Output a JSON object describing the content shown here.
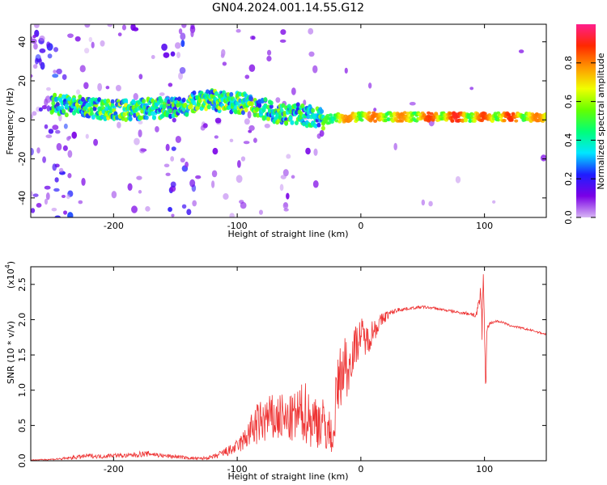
{
  "figure": {
    "title": "GN04.2024.001.14.55.G12"
  },
  "chart_data": [
    {
      "type": "heatmap",
      "xlabel": "Height of straight line (km)",
      "ylabel": "Frequency (Hz)",
      "xlim": [
        -267,
        150
      ],
      "ylim": [
        -50,
        49
      ],
      "xticks": [
        -200,
        -100,
        0,
        100
      ],
      "yticks": [
        -40,
        -20,
        0,
        20,
        40
      ],
      "grid": false,
      "colorbar": {
        "label": "Normalized spectral amplitude",
        "range": [
          0.0,
          1.0
        ],
        "ticks": [
          0.0,
          0.2,
          0.4,
          0.6,
          0.8
        ],
        "colors": [
          "#d8b6f4",
          "#7a00e6",
          "#1e1eff",
          "#00e6ff",
          "#00ff78",
          "#64ff00",
          "#f0ff00",
          "#ff9600",
          "#ff2800",
          "#ff1e8c"
        ]
      },
      "ridge": {
        "x": [
          -245,
          -230,
          -215,
          -200,
          -185,
          -170,
          -155,
          -140,
          -130,
          -120,
          -110,
          -100,
          -90,
          -80,
          -70,
          -60,
          -50,
          -45,
          -40,
          -35,
          -30,
          -20,
          -10,
          0,
          20,
          40,
          60,
          80,
          90,
          100,
          110,
          120,
          135,
          150
        ],
        "freq": [
          8,
          7,
          6,
          5,
          5,
          6,
          6,
          7,
          11,
          10,
          9,
          9,
          8,
          6,
          4,
          3,
          3,
          2,
          2,
          1,
          0,
          1,
          1,
          1.5,
          1.5,
          1.5,
          1.5,
          1.5,
          1.5,
          1.5,
          1.5,
          1.5,
          1.5,
          1.5
        ],
        "amplitude": [
          0.45,
          0.5,
          0.5,
          0.55,
          0.5,
          0.45,
          0.45,
          0.5,
          0.55,
          0.5,
          0.55,
          0.5,
          0.5,
          0.45,
          0.5,
          0.45,
          0.45,
          0.4,
          0.4,
          0.45,
          0.55,
          0.75,
          0.8,
          0.85,
          0.8,
          0.8,
          0.9,
          0.92,
          0.8,
          0.88,
          0.85,
          0.9,
          0.82,
          0.8
        ]
      }
    },
    {
      "type": "line",
      "xlabel": "Height of straight line (km)",
      "ylabel": "SNR (10 * v/v)",
      "y_scale_label": "(x10",
      "y_scale_exponent": "4",
      "y_scale_suffix": ")",
      "xlim": [
        -267,
        150
      ],
      "ylim": [
        0.0,
        2.75
      ],
      "xticks": [
        -200,
        -100,
        0,
        100
      ],
      "yticks": [
        0.0,
        0.5,
        1.0,
        1.5,
        2.0,
        2.5
      ],
      "ytick_labels": [
        "0.0",
        "0.5",
        "1.0",
        "1.5",
        "2.0",
        "2.5"
      ],
      "grid": false,
      "series": [
        {
          "name": "SNR",
          "color": "#ee3333",
          "x": [
            -267,
            -250,
            -240,
            -230,
            -220,
            -210,
            -200,
            -190,
            -180,
            -170,
            -160,
            -150,
            -140,
            -130,
            -120,
            -115,
            -110,
            -105,
            -100,
            -95,
            -90,
            -85,
            -80,
            -75,
            -70,
            -65,
            -60,
            -55,
            -50,
            -45,
            -40,
            -35,
            -30,
            -25,
            -22,
            -20,
            -18,
            -15,
            -12,
            -10,
            -8,
            -5,
            0,
            5,
            10,
            15,
            20,
            25,
            30,
            40,
            50,
            60,
            70,
            80,
            90,
            93,
            95,
            97,
            98,
            99,
            100,
            101,
            102,
            105,
            110,
            115,
            120,
            130,
            140,
            150
          ],
          "y": [
            0.01,
            0.02,
            0.03,
            0.05,
            0.07,
            0.06,
            0.08,
            0.07,
            0.09,
            0.1,
            0.07,
            0.06,
            0.04,
            0.03,
            0.05,
            0.08,
            0.12,
            0.15,
            0.2,
            0.28,
            0.4,
            0.5,
            0.55,
            0.6,
            0.58,
            0.62,
            0.55,
            0.6,
            0.65,
            0.7,
            0.55,
            0.6,
            0.5,
            0.4,
            0.3,
            0.9,
            1.1,
            1.3,
            1.4,
            1.2,
            1.5,
            1.6,
            1.8,
            1.7,
            1.85,
            1.95,
            2.05,
            2.1,
            2.14,
            2.16,
            2.18,
            2.16,
            2.13,
            2.1,
            2.08,
            2.05,
            2.15,
            2.4,
            1.8,
            2.7,
            1.9,
            0.95,
            1.9,
            1.95,
            1.98,
            1.96,
            1.92,
            1.88,
            1.84,
            1.79
          ],
          "noise": [
            0.005,
            0.01,
            0.02,
            0.03,
            0.03,
            0.03,
            0.03,
            0.03,
            0.04,
            0.04,
            0.03,
            0.03,
            0.02,
            0.02,
            0.03,
            0.05,
            0.07,
            0.08,
            0.1,
            0.15,
            0.22,
            0.3,
            0.33,
            0.35,
            0.35,
            0.36,
            0.34,
            0.35,
            0.4,
            0.45,
            0.4,
            0.42,
            0.38,
            0.3,
            0.2,
            0.4,
            0.45,
            0.45,
            0.45,
            0.4,
            0.35,
            0.3,
            0.25,
            0.22,
            0.18,
            0.12,
            0.08,
            0.04,
            0.03,
            0.02,
            0.02,
            0.02,
            0.02,
            0.02,
            0.03,
            0.05,
            0.1,
            0.2,
            0.2,
            0.1,
            0.1,
            0.05,
            0.05,
            0.02,
            0.015,
            0.015,
            0.015,
            0.015,
            0.015,
            0.015
          ]
        }
      ]
    }
  ]
}
